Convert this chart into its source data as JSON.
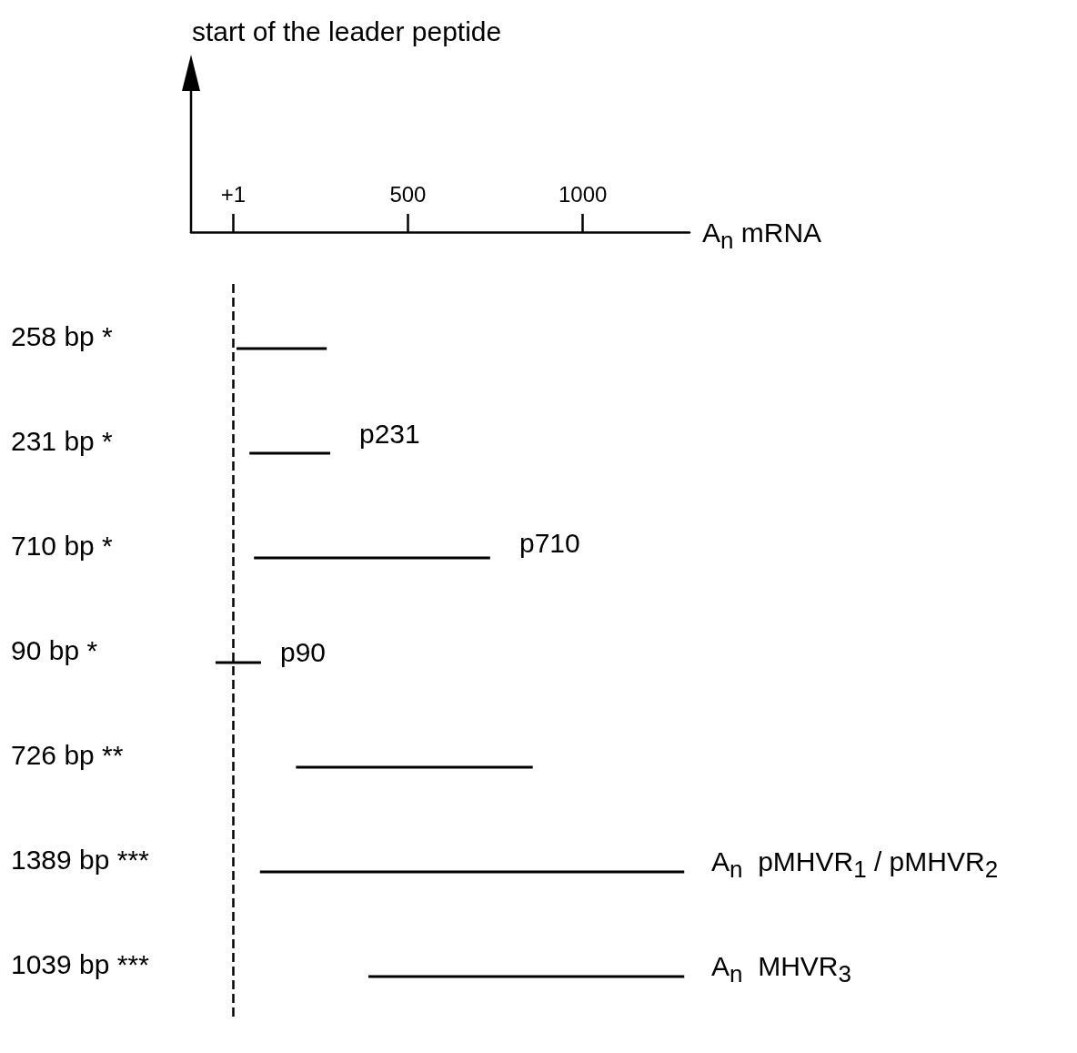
{
  "chart_data": {
    "type": "bar",
    "orientation": "horizontal",
    "xlabel": "A$_{n}$ mRNA",
    "categories": [
      "258 bp *",
      "231 bp *",
      "710 bp *",
      "90 bp *",
      "726 bp **",
      "1389 bp ***",
      "1039 bp ***"
    ],
    "base": [
      10,
      47,
      60,
      -50,
      180,
      77,
      387
    ],
    "values": [
      258,
      231,
      675,
      130,
      677,
      1213,
      903
    ],
    "color": "#000000",
    "xlim": [
      -120,
      1305
    ],
    "xticks": [
      {
        "value": 1,
        "label": "+1"
      },
      500,
      1000
    ],
    "ref_lines": [
      {
        "axis": "x",
        "value": 1,
        "line_style": "dashed"
      }
    ],
    "annotations": [
      "start of the leader peptide",
      "p231",
      "p710",
      "p90",
      "A$_{n}$  pMHVR$_{1}$ / pMHVR$_{2}$",
      "A$_{n}$  MHVR$_{3}$"
    ],
    "grid": false
  }
}
